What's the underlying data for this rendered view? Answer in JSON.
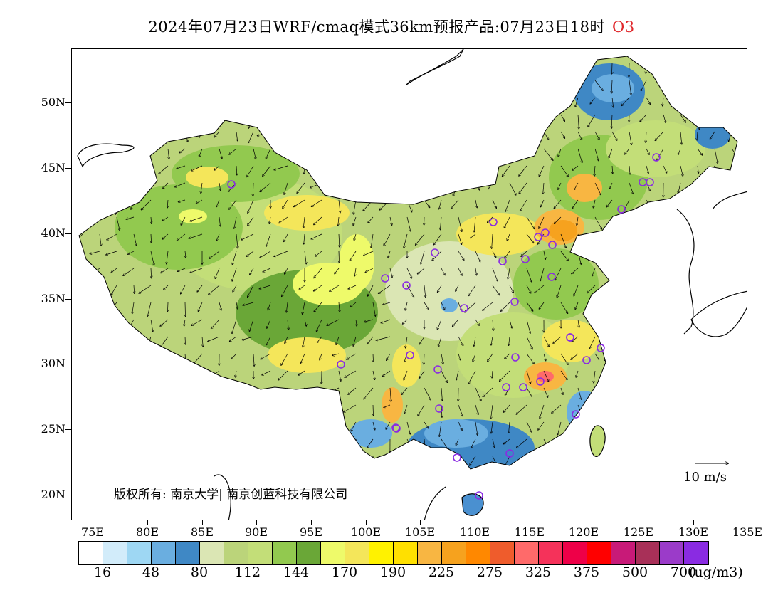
{
  "title": {
    "text": "2024年07月23日WRF/cmaq模式36km预报产品:07月23日18时",
    "pollutant": "O3",
    "pollutant_color": "#e0282c"
  },
  "map": {
    "lat_labels": [
      "50N",
      "45N",
      "40N",
      "35N",
      "30N",
      "25N",
      "20N"
    ],
    "lon_labels": [
      "75E",
      "80E",
      "85E",
      "90E",
      "95E",
      "100E",
      "105E",
      "110E",
      "115E",
      "120E",
      "125E",
      "130E",
      "135E"
    ],
    "copyright": "版权所有: 南京大学| 南京创蓝科技有限公司",
    "wind_scale_label": "10  m/s",
    "station_marker_color": "#8a2be2"
  },
  "legend": {
    "colors": [
      "#ffffff",
      "#d2ecfa",
      "#9ed7f3",
      "#6aaee0",
      "#3f88c5",
      "#dbe6b4",
      "#bbd47a",
      "#c3de78",
      "#92c94f",
      "#6aa737",
      "#eefa6a",
      "#f4e65a",
      "#fff200",
      "#ffe000",
      "#f8b642",
      "#f6a21e",
      "#ff8800",
      "#ef5c2c",
      "#ff6a6a",
      "#f5325a",
      "#ee0048",
      "#ff0000",
      "#c81a78",
      "#a83058",
      "#9b3bc9",
      "#8a2be2"
    ],
    "labels": [
      "16",
      "48",
      "80",
      "112",
      "144",
      "170",
      "190",
      "225",
      "275",
      "325",
      "375",
      "500",
      "700"
    ],
    "unit": "(ug/m3)"
  }
}
